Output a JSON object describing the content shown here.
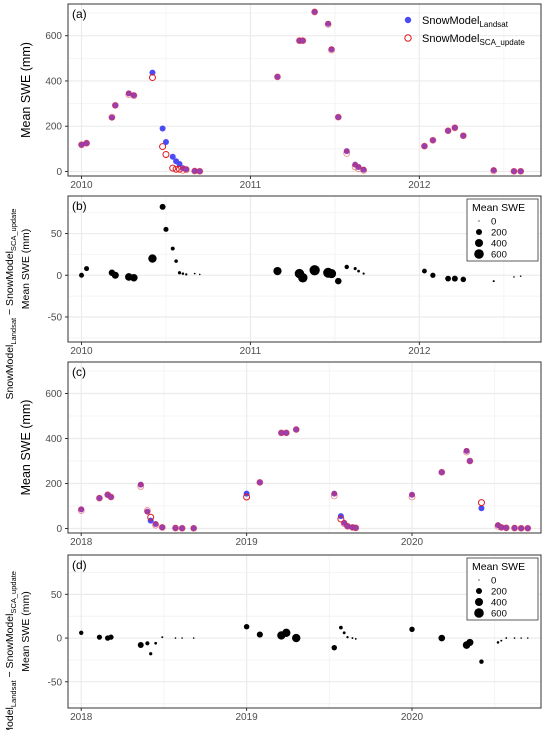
{
  "colors": {
    "landsat": "#4b4bf5",
    "sca_update": "#e3191c",
    "overlap": "#9a3fb0",
    "grid": "#ebebeb",
    "grid_minor": "#f4f4f4",
    "diff_point": "#000000"
  },
  "chart_data": [
    {
      "panel_label": "(a)",
      "type": "scatter",
      "ylabel": "Mean SWE (mm)",
      "xlim": [
        2009.92,
        2012.72
      ],
      "ylim": [
        -20,
        740
      ],
      "x_ticks": [
        2010,
        2011,
        2012
      ],
      "x_tick_labels": [
        "2010",
        "2011",
        "2012"
      ],
      "y_ticks": [
        0,
        200,
        400,
        600
      ],
      "y_tick_labels": [
        "0",
        "200",
        "400",
        "600"
      ],
      "grid": true,
      "legend": {
        "position": "top-right",
        "items": [
          {
            "base": "SnowModel",
            "sub": "Landsat",
            "marker": "filled-circle"
          },
          {
            "base": "SnowModel",
            "sub": "SCA_update",
            "marker": "open-circle"
          }
        ]
      },
      "series": [
        {
          "name": "SnowModel_Landsat",
          "x": [
            2010.0,
            2010.03,
            2010.18,
            2010.2,
            2010.28,
            2010.31,
            2010.42,
            2010.48,
            2010.5,
            2010.54,
            2010.56,
            2010.58,
            2010.6,
            2010.62,
            2010.67,
            2010.7,
            2011.16,
            2011.29,
            2011.31,
            2011.38,
            2011.46,
            2011.48,
            2011.52,
            2011.57,
            2011.62,
            2011.64,
            2011.67,
            2012.03,
            2012.08,
            2012.17,
            2012.21,
            2012.26,
            2012.44,
            2012.56,
            2012.6
          ],
          "y": [
            118,
            125,
            238,
            292,
            345,
            337,
            437,
            190,
            130,
            65,
            45,
            33,
            15,
            10,
            2,
            1,
            418,
            578,
            578,
            705,
            653,
            540,
            240,
            90,
            30,
            20,
            8,
            112,
            138,
            180,
            193,
            158,
            6,
            1,
            1
          ]
        },
        {
          "name": "SnowModel_SCA_update",
          "x": [
            2010.0,
            2010.03,
            2010.18,
            2010.2,
            2010.28,
            2010.31,
            2010.42,
            2010.48,
            2010.5,
            2010.54,
            2010.56,
            2010.58,
            2010.6,
            2010.62,
            2010.67,
            2010.7,
            2011.16,
            2011.29,
            2011.31,
            2011.38,
            2011.46,
            2011.48,
            2011.52,
            2011.57,
            2011.62,
            2011.64,
            2011.67,
            2012.03,
            2012.08,
            2012.17,
            2012.21,
            2012.26,
            2012.44,
            2012.56,
            2012.6
          ],
          "y": [
            118,
            125,
            240,
            292,
            340,
            335,
            415,
            110,
            75,
            15,
            10,
            10,
            5,
            8,
            2,
            1,
            418,
            578,
            578,
            705,
            650,
            537,
            240,
            80,
            20,
            12,
            5,
            112,
            138,
            180,
            193,
            158,
            3,
            1,
            1
          ]
        }
      ]
    },
    {
      "panel_label": "(b)",
      "type": "scatter",
      "ylabel_main": "Mean SWE (mm)",
      "ylabel_outer": {
        "a_base": "SnowModel",
        "a_sub": "Landsat",
        "minus": " − ",
        "b_base": "SnowModel",
        "b_sub": "SCA_update"
      },
      "xlim": [
        2009.92,
        2012.72
      ],
      "ylim": [
        -80,
        95
      ],
      "x_ticks": [
        2010,
        2011,
        2012
      ],
      "x_tick_labels": [
        "2010",
        "2011",
        "2012"
      ],
      "y_ticks": [
        -50,
        0,
        50
      ],
      "y_tick_labels": [
        "-50",
        "0",
        "50"
      ],
      "grid": true,
      "size_legend": {
        "position": "top-right",
        "title": "Mean SWE",
        "values": [
          0,
          200,
          400,
          600
        ],
        "labels": [
          "0",
          "200",
          "400",
          "600"
        ]
      },
      "points": {
        "x": [
          2010.0,
          2010.03,
          2010.18,
          2010.2,
          2010.28,
          2010.31,
          2010.42,
          2010.48,
          2010.5,
          2010.54,
          2010.56,
          2010.58,
          2010.6,
          2010.62,
          2010.67,
          2010.7,
          2011.16,
          2011.29,
          2011.31,
          2011.38,
          2011.46,
          2011.48,
          2011.52,
          2011.57,
          2011.62,
          2011.64,
          2011.67,
          2012.03,
          2012.08,
          2012.17,
          2012.21,
          2012.26,
          2012.44,
          2012.56,
          2012.6
        ],
        "y": [
          0,
          8,
          3,
          0,
          -2,
          -3,
          20,
          82,
          55,
          32,
          17,
          3,
          2,
          1,
          2,
          1,
          5,
          2,
          -3,
          6,
          3,
          2,
          -7,
          10,
          8,
          5,
          2,
          5,
          0,
          -4,
          -4,
          -5,
          -7,
          -2,
          -1
        ],
        "swe": [
          118,
          125,
          238,
          292,
          345,
          337,
          437,
          190,
          130,
          65,
          45,
          33,
          15,
          10,
          2,
          1,
          418,
          578,
          578,
          705,
          653,
          540,
          240,
          90,
          30,
          20,
          8,
          112,
          138,
          180,
          193,
          158,
          6,
          1,
          1
        ]
      }
    },
    {
      "panel_label": "(c)",
      "type": "scatter",
      "ylabel": "Mean SWE (mm)",
      "xlim": [
        2017.92,
        2020.78
      ],
      "ylim": [
        -20,
        740
      ],
      "x_ticks": [
        2018,
        2019,
        2020
      ],
      "x_tick_labels": [
        "2018",
        "2019",
        "2020"
      ],
      "y_ticks": [
        0,
        200,
        400,
        600
      ],
      "y_tick_labels": [
        "0",
        "200",
        "400",
        "600"
      ],
      "grid": true,
      "series": [
        {
          "name": "SnowModel_Landsat",
          "x": [
            2018.0,
            2018.11,
            2018.16,
            2018.18,
            2018.36,
            2018.4,
            2018.42,
            2018.45,
            2018.49,
            2018.57,
            2018.61,
            2018.68,
            2019.0,
            2019.08,
            2019.21,
            2019.24,
            2019.3,
            2019.53,
            2019.57,
            2019.59,
            2019.61,
            2019.64,
            2019.66,
            2020.0,
            2020.18,
            2020.33,
            2020.35,
            2020.42,
            2020.52,
            2020.54,
            2020.57,
            2020.62,
            2020.66,
            2020.7
          ],
          "y": [
            85,
            135,
            150,
            140,
            195,
            75,
            35,
            20,
            5,
            2,
            1,
            1,
            155,
            205,
            425,
            425,
            440,
            155,
            55,
            25,
            10,
            5,
            3,
            150,
            250,
            345,
            300,
            90,
            15,
            5,
            3,
            2,
            1,
            1
          ]
        },
        {
          "name": "SnowModel_SCA_update",
          "x": [
            2018.0,
            2018.11,
            2018.16,
            2018.18,
            2018.36,
            2018.4,
            2018.42,
            2018.45,
            2018.49,
            2018.57,
            2018.61,
            2018.68,
            2019.0,
            2019.08,
            2019.21,
            2019.24,
            2019.3,
            2019.53,
            2019.57,
            2019.59,
            2019.61,
            2019.64,
            2019.66,
            2020.0,
            2020.18,
            2020.33,
            2020.35,
            2020.42,
            2020.52,
            2020.54,
            2020.57,
            2020.62,
            2020.66,
            2020.7
          ],
          "y": [
            80,
            135,
            150,
            140,
            187,
            80,
            50,
            15,
            5,
            2,
            1,
            1,
            140,
            205,
            425,
            425,
            440,
            145,
            42,
            22,
            10,
            5,
            3,
            140,
            250,
            340,
            300,
            115,
            10,
            5,
            3,
            2,
            1,
            1
          ]
        }
      ]
    },
    {
      "panel_label": "(d)",
      "type": "scatter",
      "ylabel_main": "Mean SWE (mm)",
      "ylabel_outer": {
        "a_base": "SnowModel",
        "a_sub": "Landsat",
        "minus": " − ",
        "b_base": "SnowModel",
        "b_sub": "SCA_update"
      },
      "xlim": [
        2017.92,
        2020.78
      ],
      "ylim": [
        -80,
        95
      ],
      "x_ticks": [
        2018,
        2019,
        2020
      ],
      "x_tick_labels": [
        "2018",
        "2019",
        "2020"
      ],
      "y_ticks": [
        -50,
        0,
        50
      ],
      "y_tick_labels": [
        "-50",
        "0",
        "50"
      ],
      "grid": true,
      "size_legend": {
        "position": "top-right",
        "title": "Mean SWE",
        "values": [
          0,
          200,
          400,
          600
        ],
        "labels": [
          "0",
          "200",
          "400",
          "600"
        ]
      },
      "points": {
        "x": [
          2018.0,
          2018.11,
          2018.16,
          2018.18,
          2018.36,
          2018.4,
          2018.42,
          2018.45,
          2018.49,
          2018.57,
          2018.61,
          2018.68,
          2019.0,
          2019.08,
          2019.21,
          2019.24,
          2019.3,
          2019.53,
          2019.57,
          2019.59,
          2019.61,
          2019.64,
          2019.66,
          2020.0,
          2020.18,
          2020.33,
          2020.35,
          2020.42,
          2020.52,
          2020.54,
          2020.57,
          2020.62,
          2020.66,
          2020.7
        ],
        "y": [
          6,
          1,
          0,
          1,
          -8,
          -6,
          -18,
          -6,
          1,
          0,
          0,
          0,
          13,
          4,
          3,
          6,
          0,
          -11,
          12,
          6,
          1,
          0,
          -1,
          10,
          0,
          -8,
          -5,
          -27,
          -5,
          -3,
          0,
          0,
          0,
          0
        ],
        "swe": [
          85,
          135,
          150,
          140,
          195,
          75,
          35,
          20,
          5,
          2,
          1,
          1,
          155,
          205,
          425,
          425,
          440,
          155,
          55,
          25,
          10,
          5,
          3,
          150,
          250,
          345,
          300,
          90,
          15,
          5,
          3,
          2,
          1,
          1
        ]
      }
    }
  ]
}
